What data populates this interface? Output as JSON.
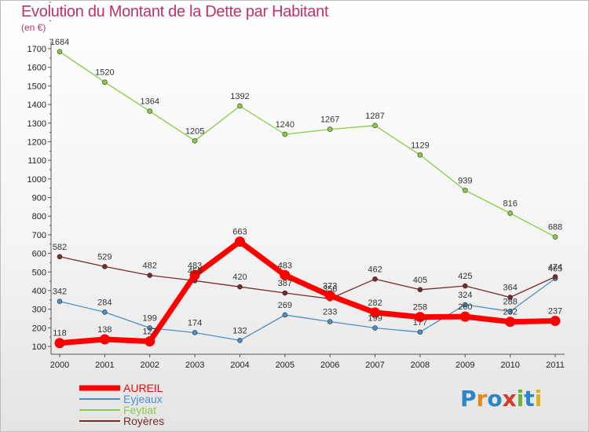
{
  "header": {
    "title": "Evolution du Montant de la Dette par Habitant",
    "unit": "(en €)"
  },
  "logo": {
    "text": "Proxiti",
    "colors": [
      "#2a86c8",
      "#e08a1a",
      "#2a86c8",
      "#d23c2a",
      "#6ab23c",
      "#2a86c8",
      "#e0b020"
    ]
  },
  "chart_data": {
    "type": "line",
    "title": "Evolution du Montant de la Dette par Habitant",
    "ylabel": "(en €)",
    "xlabel": "",
    "x": [
      "2000",
      "2001",
      "2002",
      "2003",
      "2004",
      "2005",
      "2006",
      "2007",
      "2008",
      "2009",
      "2010",
      "2011"
    ],
    "ylim": [
      100,
      1700
    ],
    "yticks": [
      100,
      200,
      300,
      400,
      500,
      600,
      700,
      800,
      900,
      1000,
      1100,
      1200,
      1300,
      1400,
      1500,
      1600,
      1700
    ],
    "grid": false,
    "legend": "bottom-left",
    "series": [
      {
        "name": "AUREIL",
        "color": "#ff0000",
        "values": [
          118,
          138,
          127,
          483,
          663,
          483,
          373,
          282,
          258,
          260,
          232,
          237
        ],
        "labels": [
          "118",
          "138",
          "127",
          "483",
          "663",
          "483",
          "373",
          "282",
          "258",
          "260",
          "232",
          "237"
        ]
      },
      {
        "name": "Eyjeaux",
        "color": "#4a90c8",
        "values": [
          342,
          284,
          199,
          174,
          132,
          269,
          233,
          199,
          177,
          324,
          288,
          465
        ],
        "labels": [
          "342",
          "284",
          "199",
          "174",
          "132",
          "269",
          "233",
          "199",
          "177",
          "324",
          "288",
          "465"
        ]
      },
      {
        "name": "Feytiat",
        "color": "#88cc44",
        "values": [
          1684,
          1520,
          1364,
          1205,
          1392,
          1240,
          1267,
          1287,
          1129,
          939,
          816,
          688
        ],
        "labels": [
          "1684",
          "1520",
          "1364",
          "1205",
          "1392",
          "1240",
          "1267",
          "1287",
          "1129",
          "939",
          "816",
          "688"
        ]
      },
      {
        "name": "Royères",
        "color": "#7a2a2a",
        "values": [
          582,
          529,
          482,
          453,
          420,
          387,
          356,
          462,
          405,
          425,
          364,
          474
        ],
        "labels": [
          "582",
          "529",
          "482",
          "453",
          "420",
          "387",
          "356",
          "462",
          "405",
          "425",
          "364",
          "474"
        ]
      }
    ]
  }
}
